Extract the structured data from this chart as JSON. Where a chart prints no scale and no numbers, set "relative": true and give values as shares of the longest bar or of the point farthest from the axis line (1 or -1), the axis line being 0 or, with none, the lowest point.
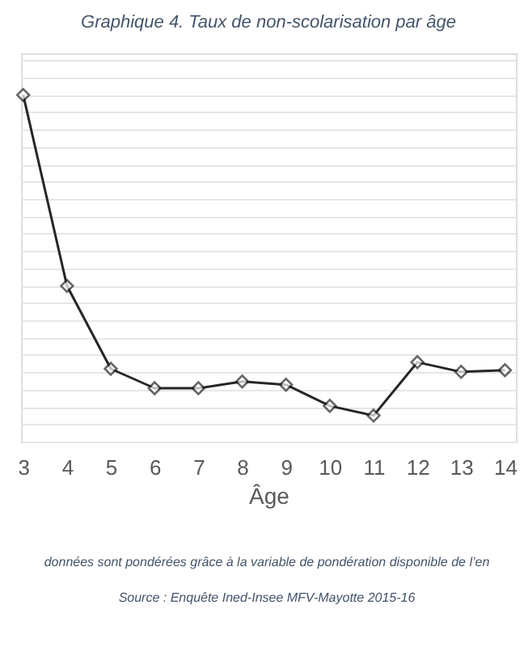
{
  "chart_data": {
    "type": "line",
    "title": "Graphique 4. Taux de non-scolarisation par âge",
    "xlabel": "Âge",
    "categories": [
      "3",
      "4",
      "5",
      "6",
      "7",
      "8",
      "9",
      "10",
      "11",
      "12",
      "13",
      "14"
    ],
    "series": [
      {
        "color": "#262626",
        "values": [
          1,
          0.449,
          0.21,
          0.154,
          0.154,
          0.173,
          0.164,
          0.103,
          0.075,
          0.229,
          0.201,
          0.206
        ]
      }
    ],
    "relative": true,
    "grid": "y",
    "marker": "diamond",
    "line_style": "solid",
    "annotations": [
      "données sont pondérées grâce à la variable de pondération disponible de l’en",
      "Source : Enquête Ined-Insee MFV-Mayotte 2015-16"
    ]
  }
}
